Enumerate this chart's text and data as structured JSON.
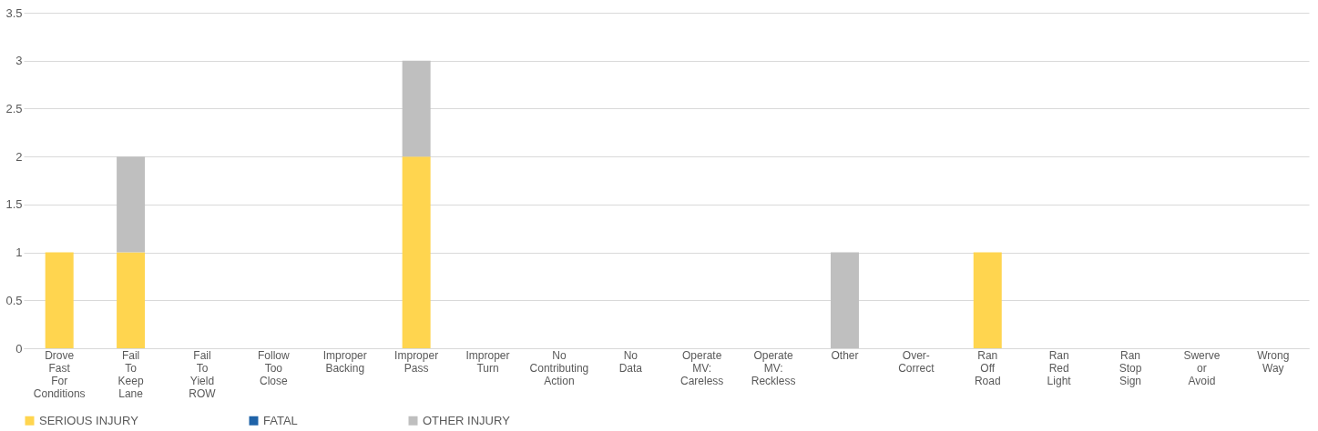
{
  "chart_data": {
    "type": "bar",
    "stacked": true,
    "categories": [
      "Drove Fast For Conditions",
      "Fail To Keep Lane",
      "Fail To Yield ROW",
      "Follow Too Close",
      "Improper Backing",
      "Improper Pass",
      "Improper Turn",
      "No Contributing Action",
      "No Data",
      "Operate MV: Careless",
      "Operate MV: Reckless",
      "Other",
      "Over-Correct",
      "Ran Off Road",
      "Ran Red Light",
      "Ran Stop Sign",
      "Swerve or Avoid",
      "Wrong Way"
    ],
    "series": [
      {
        "name": "SERIOUS INJURY",
        "color": "#ffd54f",
        "values": [
          1,
          1,
          0,
          0,
          0,
          2,
          0,
          0,
          0,
          0,
          0,
          0,
          0,
          1,
          0,
          0,
          0,
          0
        ]
      },
      {
        "name": "FATAL",
        "color": "#1f63a8",
        "values": [
          0,
          0,
          0,
          0,
          0,
          0,
          0,
          0,
          0,
          0,
          0,
          0,
          0,
          0,
          0,
          0,
          0,
          0
        ]
      },
      {
        "name": "OTHER INJURY",
        "color": "#bfbfbf",
        "values": [
          0,
          1,
          0,
          0,
          0,
          1,
          0,
          0,
          0,
          0,
          0,
          1,
          0,
          0,
          0,
          0,
          0,
          0
        ]
      }
    ],
    "ylim": [
      0,
      3.5
    ],
    "yticks": [
      0,
      0.5,
      1,
      1.5,
      2,
      2.5,
      3,
      3.5
    ],
    "grid": "y",
    "legend": "bottom"
  }
}
